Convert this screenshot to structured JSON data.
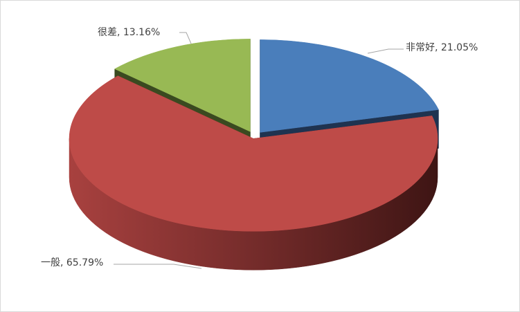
{
  "chart_data": {
    "type": "pie",
    "style": "3d-exploded",
    "start": "12 o'clock, clockwise",
    "slices": [
      {
        "label": "非常好",
        "value": 21.05,
        "text": "非常好, 21.05%",
        "color": "#4a7ebb",
        "side_color": "#1f3350"
      },
      {
        "label": "一般",
        "value": 65.79,
        "text": "一般, 65.79%",
        "color": "#be4b48",
        "side_color": "#5a1f1e"
      },
      {
        "label": "很差",
        "value": 13.16,
        "text": "很差, 13.16%",
        "color": "#98b954",
        "side_color": "#3a4a20"
      }
    ],
    "legend": "none",
    "data_labels": "category, percent with leader lines"
  }
}
